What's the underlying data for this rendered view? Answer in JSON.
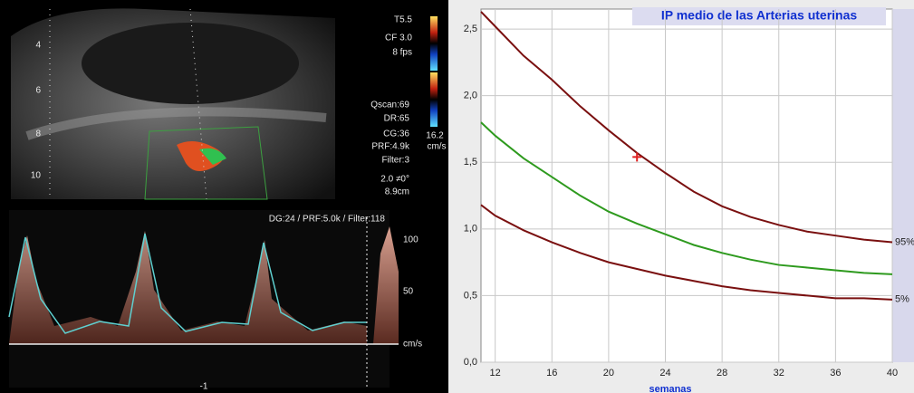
{
  "ultrasound": {
    "settings": [
      "T5.5",
      "CF 3.0",
      "8 fps",
      "Qscan:69",
      "DR:65",
      "CG:36",
      "PRF:4.9k",
      "Filter:3",
      "2.0  ≠0°",
      "8.9cm"
    ],
    "color_scale": [
      "16.2",
      "cm/s"
    ],
    "depth": [
      "4",
      "6",
      "8",
      "10"
    ],
    "doppler_header": "DG:24 /   PRF:5.0k   / Filter:118",
    "doppler_scale": [
      "100",
      "50",
      "cm/s"
    ],
    "time": [
      "-1"
    ]
  },
  "chart_data": {
    "type": "line",
    "title": "IP medio de las Arterias uterinas",
    "xlabel": "semanas",
    "x": [
      11,
      12,
      14,
      16,
      18,
      20,
      22,
      24,
      26,
      28,
      30,
      32,
      34,
      36,
      38,
      40
    ],
    "series": [
      {
        "name": "95%",
        "color": "#7a1010",
        "values": [
          2.63,
          2.52,
          2.3,
          2.12,
          1.92,
          1.74,
          1.57,
          1.42,
          1.28,
          1.17,
          1.09,
          1.03,
          0.98,
          0.95,
          0.92,
          0.9
        ]
      },
      {
        "color": "#2e9a1e",
        "values": [
          1.8,
          1.7,
          1.53,
          1.39,
          1.25,
          1.13,
          1.04,
          0.96,
          0.88,
          0.82,
          0.77,
          0.73,
          0.71,
          0.69,
          0.67,
          0.66
        ]
      },
      {
        "name": "5%",
        "color": "#7a1010",
        "values": [
          1.18,
          1.1,
          0.99,
          0.9,
          0.82,
          0.75,
          0.7,
          0.65,
          0.61,
          0.57,
          0.54,
          0.52,
          0.5,
          0.48,
          0.48,
          0.47
        ]
      }
    ],
    "marker": {
      "x": 22,
      "y": 1.54,
      "color": "#e02020"
    },
    "xlim": [
      11,
      40
    ],
    "xticks": [
      12,
      16,
      20,
      24,
      28,
      32,
      36,
      40
    ],
    "ylim": [
      0,
      2.65
    ],
    "yticks": [
      {
        "value": 0,
        "label": "0,0"
      },
      {
        "value": 0.5,
        "label": "0,5"
      },
      {
        "value": 1,
        "label": "1,0"
      },
      {
        "value": 1.5,
        "label": "1,5"
      },
      {
        "value": 2,
        "label": "2,0"
      },
      {
        "value": 2.5,
        "label": "2,5"
      }
    ],
    "grid": true
  }
}
